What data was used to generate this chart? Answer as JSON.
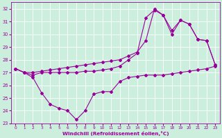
{
  "xlabel": "Windchill (Refroidissement éolien,°C)",
  "bg_color": "#cceedd",
  "grid_color": "#ffffff",
  "line_color": "#990099",
  "xlim_min": -0.5,
  "xlim_max": 23.5,
  "ylim_min": 23,
  "ylim_max": 32.5,
  "yticks": [
    23,
    24,
    25,
    26,
    27,
    28,
    29,
    30,
    31,
    32
  ],
  "xticks": [
    0,
    1,
    2,
    3,
    4,
    5,
    6,
    7,
    8,
    9,
    10,
    11,
    12,
    13,
    14,
    15,
    16,
    17,
    18,
    19,
    20,
    21,
    22,
    23
  ],
  "curveA_x": [
    0,
    1,
    2,
    3,
    4,
    5,
    6,
    7,
    8,
    9,
    10,
    11,
    12,
    13,
    14,
    15,
    16,
    17,
    18,
    19,
    20,
    21,
    22,
    23
  ],
  "curveA_y": [
    27.3,
    27.0,
    26.6,
    25.4,
    24.5,
    24.2,
    24.0,
    23.3,
    24.0,
    25.3,
    25.5,
    25.5,
    26.3,
    26.6,
    26.7,
    26.8,
    26.8,
    26.8,
    26.9,
    27.0,
    27.1,
    27.2,
    27.3,
    27.5
  ],
  "curveB_x": [
    0,
    1,
    2,
    3,
    4,
    5,
    6,
    7,
    8,
    9,
    10,
    11,
    12,
    13,
    14,
    15,
    16,
    17,
    18,
    19,
    20,
    21,
    22,
    23
  ],
  "curveB_y": [
    27.3,
    27.0,
    26.8,
    27.0,
    27.0,
    27.0,
    27.0,
    27.0,
    27.1,
    27.1,
    27.2,
    27.3,
    27.5,
    28.0,
    28.5,
    31.3,
    31.9,
    31.5,
    30.0,
    31.1,
    30.8,
    29.6,
    29.5,
    27.6
  ],
  "curveC_x": [
    0,
    1,
    2,
    3,
    4,
    5,
    6,
    7,
    8,
    9,
    10,
    11,
    12,
    13,
    14,
    15,
    16,
    17,
    18,
    19,
    20,
    21,
    22,
    23
  ],
  "curveC_y": [
    27.3,
    27.0,
    27.0,
    27.1,
    27.2,
    27.3,
    27.4,
    27.5,
    27.6,
    27.7,
    27.8,
    27.9,
    28.0,
    28.3,
    28.6,
    29.5,
    32.0,
    31.5,
    30.3,
    31.1,
    30.8,
    29.6,
    29.5,
    27.6
  ]
}
